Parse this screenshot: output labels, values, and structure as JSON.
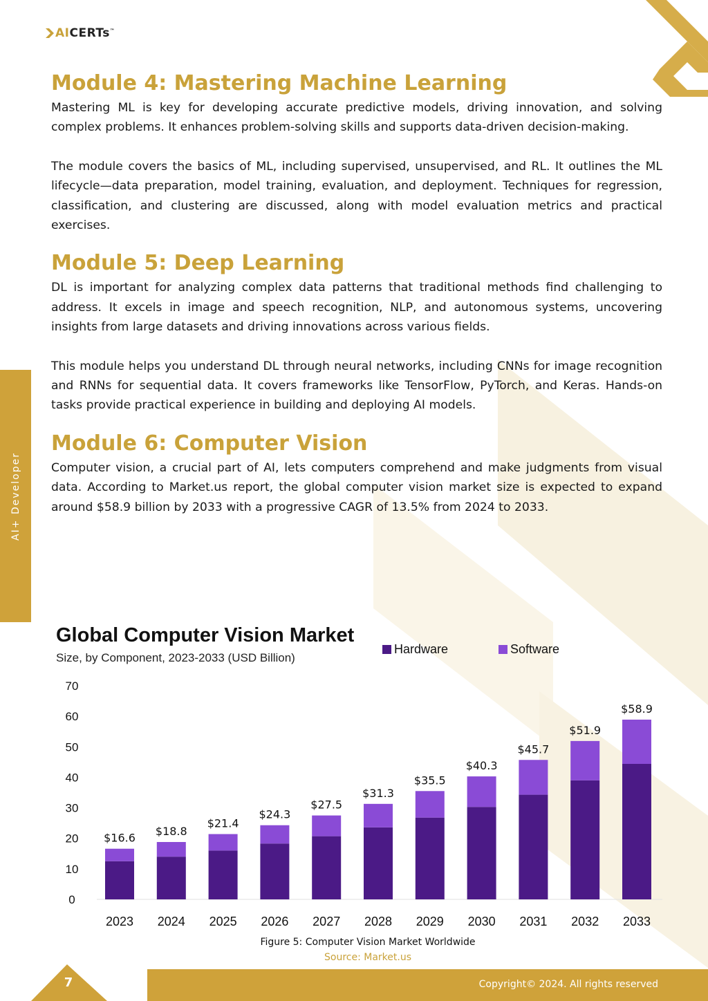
{
  "header": {
    "logo_ai": "AI",
    "logo_certs": "CERTs",
    "logo_tm": "™"
  },
  "sidebar": {
    "label": "AI+ Developer"
  },
  "modules": [
    {
      "title": "Module 4: Mastering Machine Learning",
      "paragraphs": [
        "Mastering ML is key for developing accurate predictive models, driving innovation, and solving complex problems. It enhances problem-solving skills and supports data-driven decision-making.",
        "The module covers the basics of ML, including supervised, unsupervised, and RL. It outlines the ML lifecycle—data preparation, model training, evaluation, and deployment. Techniques for regression, classification, and clustering are discussed, along with model evaluation metrics and practical exercises."
      ]
    },
    {
      "title": "Module 5: Deep Learning",
      "paragraphs": [
        "DL is important for analyzing complex data patterns that traditional methods find challenging to address. It excels in image and speech recognition, NLP, and autonomous systems, uncovering insights from large datasets and driving innovations across various fields.",
        "This module helps you understand DL through neural networks, including CNNs for image recognition and RNNs for sequential data. It covers frameworks like TensorFlow, PyTorch, and Keras. Hands-on tasks provide practical experience in building and deploying AI models."
      ]
    },
    {
      "title": "Module 6: Computer Vision",
      "paragraphs": [
        "Computer vision, a crucial part of AI, lets computers comprehend and make judgments from visual data. According to Market.us report, the global computer vision market size is expected to expand around $58.9 billion by 2033 with a progressive CAGR of 13.5% from 2024 to 2033."
      ]
    }
  ],
  "chart_data": {
    "type": "bar",
    "stacked": true,
    "title": "Global Computer Vision Market",
    "subtitle": "Size, by Component, 2023-2033 (USD Billion)",
    "categories": [
      "2023",
      "2024",
      "2025",
      "2026",
      "2027",
      "2028",
      "2029",
      "2030",
      "2031",
      "2032",
      "2033"
    ],
    "series": [
      {
        "name": "Hardware",
        "color": "#4b1a86",
        "values": [
          12.5,
          14.0,
          16.0,
          18.3,
          20.7,
          23.6,
          26.8,
          30.3,
          34.3,
          39.0,
          44.4
        ]
      },
      {
        "name": "Software",
        "color": "#8a4bd6",
        "values": [
          4.1,
          4.8,
          5.4,
          6.0,
          6.8,
          7.7,
          8.7,
          10.0,
          11.4,
          12.9,
          14.5
        ]
      }
    ],
    "totals_labels": [
      "$16.6",
      "$18.8",
      "$21.4",
      "$24.3",
      "$27.5",
      "$31.3",
      "$35.5",
      "$40.3",
      "$45.7",
      "$51.9",
      "$58.9"
    ],
    "ylim": [
      0,
      70
    ],
    "yticks": [
      "0",
      "10",
      "20",
      "30",
      "40",
      "50",
      "60",
      "70"
    ],
    "legend_position": "top-right",
    "grid": false
  },
  "figure": {
    "caption": "Figure 5: Computer Vision Market Worldwide",
    "source": "Source: Market.us"
  },
  "footer": {
    "page_number": "7",
    "copyright": "Copyright© 2024. All rights reserved"
  }
}
